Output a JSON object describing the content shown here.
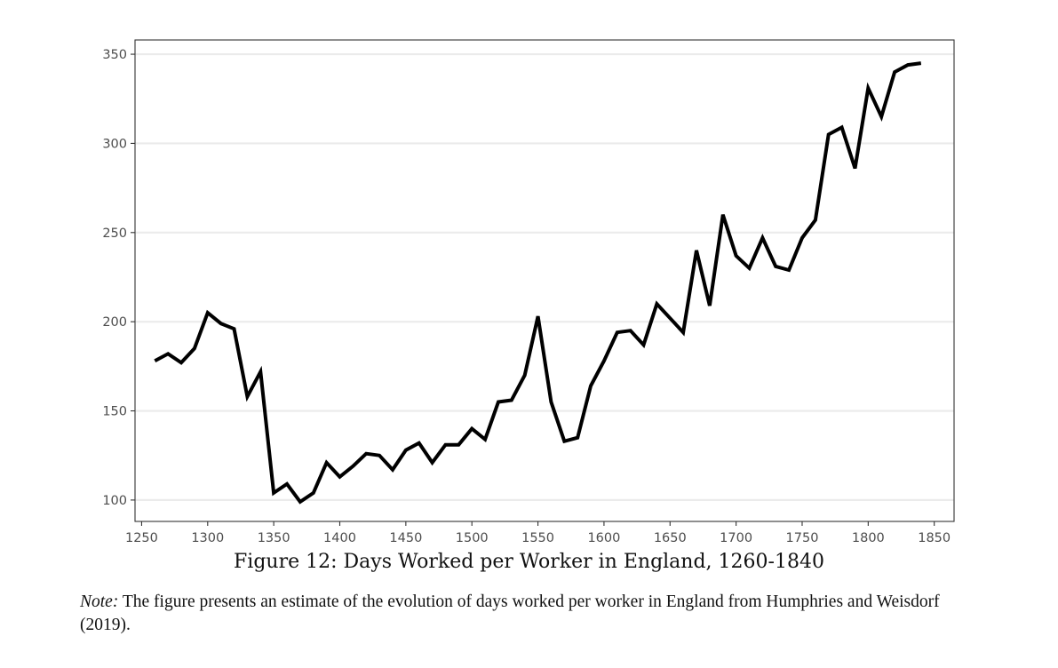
{
  "figure": {
    "caption": "Figure 12: Days Worked per Worker in England, 1260-1840",
    "note_label": "Note:",
    "note_text": "The figure presents an estimate of the evolution of days worked per worker in England from Humphries and Weisdorf (2019)."
  },
  "chart_data": {
    "type": "line",
    "title": "",
    "xlabel": "",
    "ylabel": "",
    "xlim": [
      1245,
      1865
    ],
    "ylim": [
      88,
      358
    ],
    "xticks": [
      1250,
      1300,
      1350,
      1400,
      1450,
      1500,
      1550,
      1600,
      1650,
      1700,
      1750,
      1800,
      1850
    ],
    "yticks": [
      100,
      150,
      200,
      250,
      300,
      350
    ],
    "grid": "horizontal",
    "line_color": "#000000",
    "series": [
      {
        "x": [
          1260,
          1270,
          1280,
          1290,
          1300,
          1310,
          1320,
          1330,
          1340,
          1350,
          1360,
          1370,
          1380,
          1390,
          1400,
          1410,
          1420,
          1430,
          1440,
          1450,
          1460,
          1470,
          1480,
          1490,
          1500,
          1510,
          1520,
          1530,
          1540,
          1550,
          1560,
          1570,
          1580,
          1590,
          1600,
          1610,
          1620,
          1630,
          1640,
          1650,
          1660,
          1670,
          1680,
          1690,
          1700,
          1710,
          1720,
          1730,
          1740,
          1750,
          1760,
          1770,
          1780,
          1790,
          1800,
          1810,
          1820,
          1830,
          1840
        ],
        "values": [
          178,
          182,
          177,
          185,
          205,
          199,
          196,
          158,
          172,
          104,
          109,
          99,
          104,
          121,
          113,
          119,
          126,
          125,
          117,
          128,
          132,
          121,
          131,
          131,
          140,
          134,
          155,
          156,
          170,
          203,
          155,
          133,
          135,
          164,
          178,
          194,
          195,
          187,
          210,
          202,
          194,
          240,
          209,
          260,
          237,
          230,
          247,
          231,
          229,
          247,
          257,
          305,
          309,
          286,
          331,
          315,
          340,
          344,
          345
        ]
      }
    ]
  }
}
